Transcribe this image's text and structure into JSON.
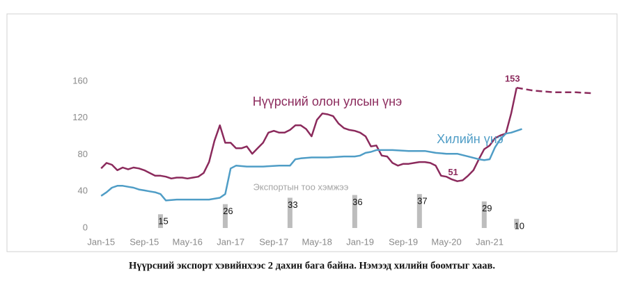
{
  "chart_data": {
    "type": "line",
    "caption": "Нүүрсний экспорт хэвийнхээс 2 дахин бага байна. Нэмээд хилийн боомтыг хаав.",
    "xlim": [
      -3,
      92
    ],
    "xticks": [
      {
        "value": 0,
        "label": "Jan-15"
      },
      {
        "value": 8,
        "label": "Sep-15"
      },
      {
        "value": 16,
        "label": "May-16"
      },
      {
        "value": 24,
        "label": "Jan-17"
      },
      {
        "value": 32,
        "label": "Sep-17"
      },
      {
        "value": 40,
        "label": "May-18"
      },
      {
        "value": 48,
        "label": "Jan-19"
      },
      {
        "value": 56,
        "label": "Sep-19"
      },
      {
        "value": 64,
        "label": "May-20"
      },
      {
        "value": 72,
        "label": "Jan-21"
      }
    ],
    "ylim": [
      0,
      160
    ],
    "yticks": [
      0,
      40,
      80,
      120,
      160
    ],
    "grid": false,
    "series": [
      {
        "name": "Нүүрсний олон улсын үнэ",
        "color": "#8b2a5c",
        "x": [
          0,
          1,
          2,
          3,
          4,
          5,
          6,
          7,
          8,
          9,
          10,
          11,
          12,
          13,
          14,
          15,
          16,
          17,
          18,
          19,
          20,
          21,
          22,
          23,
          24,
          25,
          26,
          27,
          28,
          29,
          30,
          31,
          32,
          33,
          34,
          35,
          36,
          37,
          38,
          39,
          40,
          41,
          42,
          43,
          44,
          45,
          46,
          47,
          48,
          49,
          50,
          51,
          52,
          53,
          54,
          55,
          56,
          57,
          58,
          59,
          60,
          61,
          62,
          63,
          64,
          65,
          66,
          67,
          68,
          69,
          70,
          71,
          72,
          73,
          74,
          75,
          76,
          77
        ],
        "values": [
          65,
          71,
          69,
          63,
          66,
          64,
          66,
          65,
          63,
          60,
          57,
          57,
          56,
          54,
          55,
          55,
          54,
          55,
          56,
          60,
          72,
          95,
          112,
          93,
          93,
          87,
          87,
          89,
          81,
          87,
          93,
          104,
          106,
          104,
          104,
          107,
          112,
          112,
          108,
          100,
          118,
          125,
          124,
          122,
          114,
          109,
          107,
          106,
          104,
          100,
          89,
          90,
          79,
          78,
          71,
          68,
          70,
          70,
          71,
          72,
          72,
          71,
          68,
          57,
          56,
          53,
          51,
          52,
          57,
          63,
          75,
          86,
          90,
          98,
          101,
          103,
          125,
          153
        ],
        "forecast": {
          "linestyle": "dashed",
          "x": [
            77,
            80,
            84,
            88,
            91
          ],
          "values": [
            153,
            150,
            148,
            148,
            147
          ]
        },
        "point_labels": [
          {
            "x": 77,
            "y": 153
          },
          {
            "x": 66,
            "y": 51
          }
        ]
      },
      {
        "name": "Хилийн үнэ",
        "color": "#4f9dc6",
        "x": [
          0,
          1,
          2,
          3,
          4,
          5,
          6,
          7,
          8,
          9,
          10,
          11,
          12,
          14,
          16,
          18,
          20,
          22,
          23,
          24,
          25,
          27,
          30,
          33,
          35,
          36,
          37,
          39,
          42,
          45,
          47,
          48,
          49,
          50,
          51,
          54,
          57,
          60,
          62,
          64,
          66,
          68,
          70,
          71,
          72,
          73,
          74,
          75,
          76,
          77,
          78
        ],
        "values": [
          35,
          39,
          44,
          46,
          46,
          45,
          44,
          42,
          41,
          40,
          39,
          37,
          30,
          31,
          31,
          31,
          31,
          33,
          37,
          65,
          68,
          67,
          67,
          68,
          68,
          75,
          76,
          77,
          77,
          78,
          78,
          79,
          82,
          83,
          85,
          85,
          84,
          84,
          82,
          81,
          81,
          78,
          75,
          74,
          75,
          88,
          97,
          103,
          104,
          106,
          108
        ]
      },
      {
        "name": "Экспортын тоо хэмжээ",
        "type": "bar",
        "color": "#bdbdbd",
        "x": [
          11,
          23,
          35,
          47,
          59,
          71,
          77
        ],
        "values": [
          15,
          26,
          33,
          36,
          37,
          29,
          10
        ]
      }
    ]
  }
}
